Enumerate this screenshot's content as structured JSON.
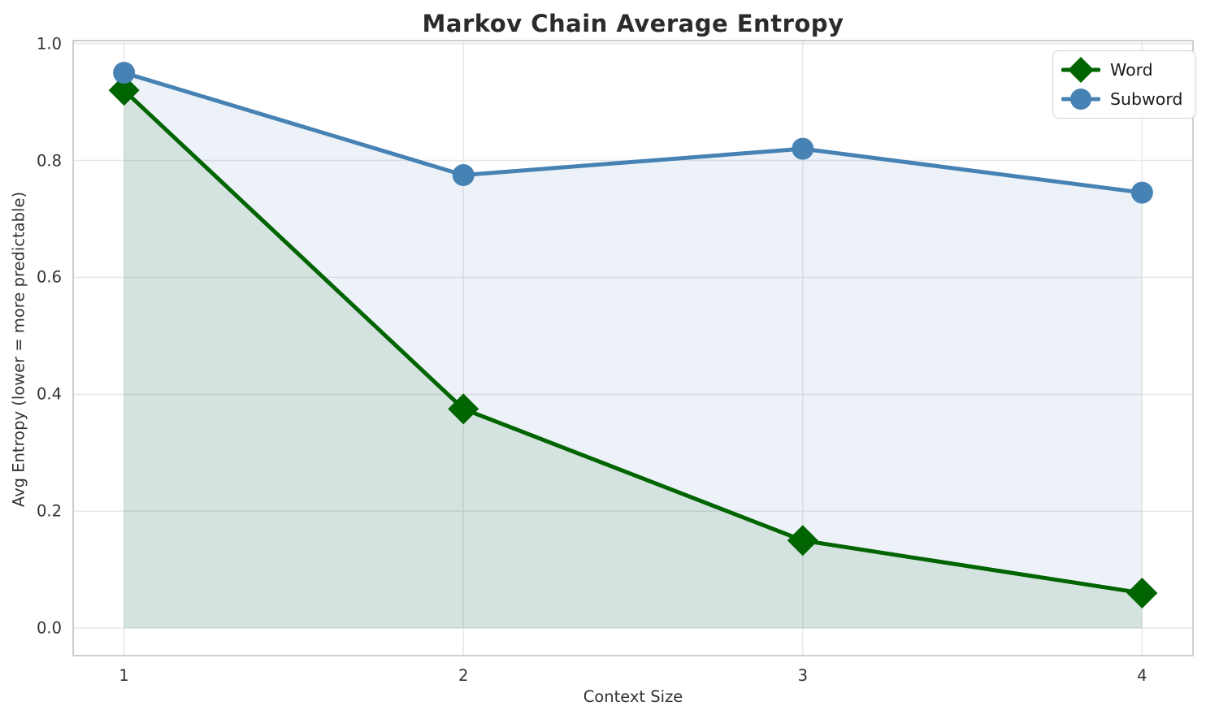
{
  "chart_data": {
    "type": "line",
    "title": "Markov Chain Average Entropy",
    "xlabel": "Context Size",
    "ylabel": "Avg Entropy (lower = more predictable)",
    "x": [
      1,
      2,
      3,
      4
    ],
    "series": [
      {
        "name": "Word",
        "color": "#006400",
        "marker": "diamond",
        "values": [
          0.92,
          0.375,
          0.15,
          0.06
        ],
        "fill_to_zero": true
      },
      {
        "name": "Subword",
        "color": "#4682B4",
        "marker": "circle",
        "values": [
          0.95,
          0.775,
          0.82,
          0.745
        ],
        "fill_to_zero": true
      }
    ],
    "fill_alpha": 0.1,
    "xticks": [
      {
        "v": 1,
        "label": "1"
      },
      {
        "v": 2,
        "label": "2"
      },
      {
        "v": 3,
        "label": "3"
      },
      {
        "v": 4,
        "label": "4"
      }
    ],
    "yticks": [
      {
        "v": 0.0,
        "label": "0.0"
      },
      {
        "v": 0.2,
        "label": "0.2"
      },
      {
        "v": 0.4,
        "label": "0.4"
      },
      {
        "v": 0.6,
        "label": "0.6"
      },
      {
        "v": 0.8,
        "label": "0.8"
      },
      {
        "v": 1.0,
        "label": "1.0"
      }
    ],
    "xlim": [
      0.85,
      4.15
    ],
    "ylim": [
      -0.047,
      1.005
    ],
    "grid": true,
    "legend_position": "upper-right",
    "colors": {
      "grid": "#e7e7e7",
      "spine": "#c9c9c9",
      "title_text": "#2b2b2b",
      "tick_text": "#333333",
      "legend_text": "#1a1a1a",
      "background": "#ffffff"
    }
  }
}
